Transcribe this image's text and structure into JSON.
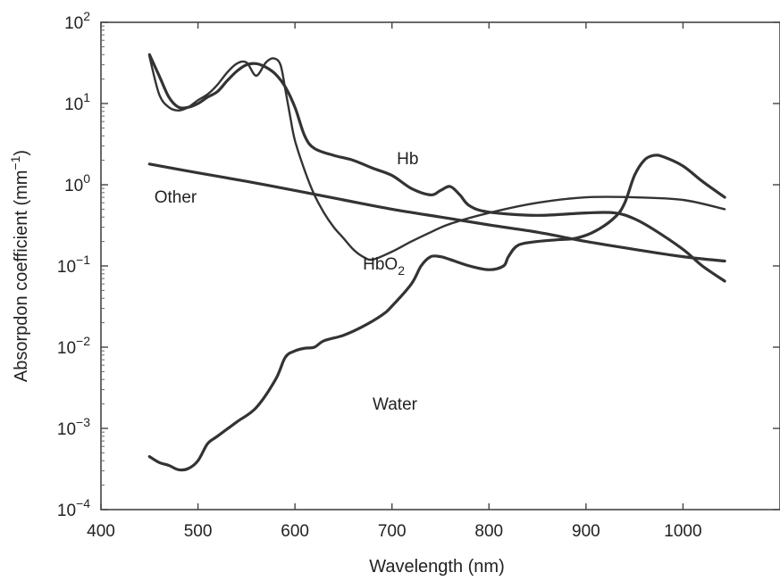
{
  "chart_data": {
    "type": "line",
    "xlabel": "Wavelength (nm)",
    "ylabel": {
      "base": "Absorpdon coefficient (mm",
      "sup": "−1",
      "close": ")"
    },
    "xlim": [
      400,
      1100
    ],
    "ylim": [
      0.0001,
      100
    ],
    "yscale": "log",
    "grid": false,
    "x_ticks": [
      {
        "value": 400,
        "label": "400"
      },
      {
        "value": 500,
        "label": "500"
      },
      {
        "value": 600,
        "label": "600"
      },
      {
        "value": 700,
        "label": "700"
      },
      {
        "value": 800,
        "label": "800"
      },
      {
        "value": 900,
        "label": "900"
      },
      {
        "value": 1000,
        "label": "1000"
      }
    ],
    "y_ticks": [
      {
        "value": 0.0001,
        "base": "10",
        "exp": "−4"
      },
      {
        "value": 0.001,
        "base": "10",
        "exp": "−3"
      },
      {
        "value": 0.01,
        "base": "10",
        "exp": "−2"
      },
      {
        "value": 0.1,
        "base": "10",
        "exp": "−1"
      },
      {
        "value": 1,
        "base": "10",
        "exp": "0"
      },
      {
        "value": 10,
        "base": "10",
        "exp": "1"
      },
      {
        "value": 100,
        "base": "10",
        "exp": "2"
      }
    ],
    "series": [
      {
        "name": "Hb",
        "key": "hb",
        "label": {
          "text": "Hb",
          "sub": "",
          "x": 705,
          "y": 1.8
        },
        "stroke": "#2b2b2b",
        "width": 3.2,
        "points": [
          [
            450,
            40
          ],
          [
            460,
            22
          ],
          [
            470,
            12
          ],
          [
            480,
            9
          ],
          [
            490,
            9
          ],
          [
            500,
            10
          ],
          [
            510,
            12
          ],
          [
            520,
            14
          ],
          [
            530,
            19
          ],
          [
            540,
            25
          ],
          [
            550,
            30
          ],
          [
            560,
            31
          ],
          [
            570,
            28
          ],
          [
            580,
            23
          ],
          [
            590,
            16
          ],
          [
            600,
            9
          ],
          [
            610,
            4
          ],
          [
            620,
            2.8
          ],
          [
            640,
            2.3
          ],
          [
            660,
            2
          ],
          [
            680,
            1.6
          ],
          [
            700,
            1.3
          ],
          [
            720,
            0.9
          ],
          [
            740,
            0.75
          ],
          [
            750,
            0.85
          ],
          [
            760,
            0.95
          ],
          [
            770,
            0.75
          ],
          [
            780,
            0.55
          ],
          [
            800,
            0.46
          ],
          [
            850,
            0.42
          ],
          [
            900,
            0.45
          ],
          [
            930,
            0.45
          ],
          [
            950,
            0.38
          ],
          [
            970,
            0.28
          ],
          [
            1000,
            0.16
          ],
          [
            1020,
            0.1
          ],
          [
            1043,
            0.065
          ]
        ]
      },
      {
        "name": "HbO₂",
        "key": "hbo2",
        "label": {
          "text": "HbO",
          "sub": "2",
          "x": 670,
          "y": 0.09
        },
        "stroke": "#4a4a4a",
        "width": 2.4,
        "points": [
          [
            450,
            38
          ],
          [
            460,
            13
          ],
          [
            470,
            9
          ],
          [
            480,
            8.2
          ],
          [
            490,
            9
          ],
          [
            500,
            11
          ],
          [
            510,
            13
          ],
          [
            520,
            17
          ],
          [
            530,
            24
          ],
          [
            540,
            31
          ],
          [
            550,
            32
          ],
          [
            560,
            22
          ],
          [
            570,
            32
          ],
          [
            578,
            36
          ],
          [
            585,
            30
          ],
          [
            590,
            15
          ],
          [
            595,
            7
          ],
          [
            600,
            3.5
          ],
          [
            610,
            1.5
          ],
          [
            620,
            0.75
          ],
          [
            630,
            0.45
          ],
          [
            640,
            0.3
          ],
          [
            650,
            0.22
          ],
          [
            660,
            0.16
          ],
          [
            670,
            0.13
          ],
          [
            680,
            0.12
          ],
          [
            700,
            0.15
          ],
          [
            720,
            0.2
          ],
          [
            740,
            0.26
          ],
          [
            760,
            0.33
          ],
          [
            800,
            0.45
          ],
          [
            850,
            0.6
          ],
          [
            900,
            0.7
          ],
          [
            950,
            0.7
          ],
          [
            1000,
            0.65
          ],
          [
            1043,
            0.5
          ]
        ]
      },
      {
        "name": "Other",
        "key": "other",
        "label": {
          "text": "Other",
          "sub": "",
          "x": 455,
          "y": 0.6
        },
        "stroke": "#2b2b2b",
        "width": 3.2,
        "points": [
          [
            450,
            1.8
          ],
          [
            500,
            1.4
          ],
          [
            550,
            1.1
          ],
          [
            600,
            0.85
          ],
          [
            650,
            0.65
          ],
          [
            700,
            0.5
          ],
          [
            750,
            0.4
          ],
          [
            800,
            0.32
          ],
          [
            850,
            0.26
          ],
          [
            900,
            0.2
          ],
          [
            950,
            0.16
          ],
          [
            1000,
            0.13
          ],
          [
            1043,
            0.115
          ]
        ]
      },
      {
        "name": "Water",
        "key": "water",
        "label": {
          "text": "Water",
          "sub": "",
          "x": 680,
          "y": 0.0017
        },
        "stroke": "#2b2b2b",
        "width": 3.2,
        "points": [
          [
            450,
            0.00045
          ],
          [
            460,
            0.00038
          ],
          [
            470,
            0.00035
          ],
          [
            480,
            0.00031
          ],
          [
            490,
            0.00032
          ],
          [
            500,
            0.0004
          ],
          [
            510,
            0.00065
          ],
          [
            520,
            0.0008
          ],
          [
            540,
            0.0012
          ],
          [
            560,
            0.0018
          ],
          [
            580,
            0.004
          ],
          [
            590,
            0.0075
          ],
          [
            600,
            0.009
          ],
          [
            610,
            0.0097
          ],
          [
            620,
            0.01
          ],
          [
            630,
            0.012
          ],
          [
            650,
            0.014
          ],
          [
            670,
            0.018
          ],
          [
            690,
            0.025
          ],
          [
            700,
            0.032
          ],
          [
            720,
            0.06
          ],
          [
            730,
            0.1
          ],
          [
            740,
            0.13
          ],
          [
            750,
            0.13
          ],
          [
            760,
            0.12
          ],
          [
            780,
            0.1
          ],
          [
            800,
            0.09
          ],
          [
            815,
            0.1
          ],
          [
            820,
            0.13
          ],
          [
            830,
            0.18
          ],
          [
            850,
            0.2
          ],
          [
            870,
            0.21
          ],
          [
            890,
            0.22
          ],
          [
            910,
            0.27
          ],
          [
            930,
            0.4
          ],
          [
            940,
            0.6
          ],
          [
            950,
            1.3
          ],
          [
            960,
            2
          ],
          [
            970,
            2.3
          ],
          [
            980,
            2.2
          ],
          [
            1000,
            1.7
          ],
          [
            1020,
            1.1
          ],
          [
            1043,
            0.7
          ]
        ]
      }
    ]
  }
}
